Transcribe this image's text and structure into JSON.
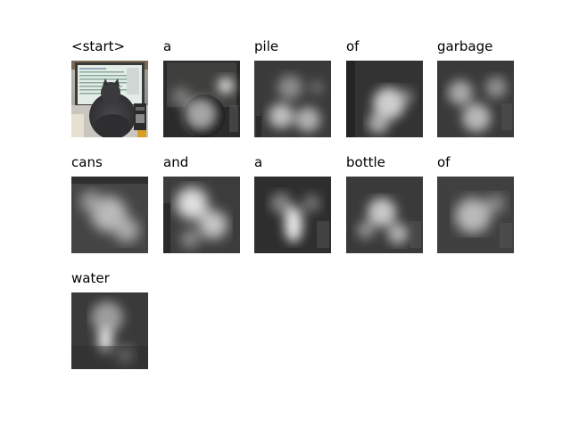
{
  "panels": [
    {
      "word": "<start>",
      "kind": "original"
    },
    {
      "word": "a",
      "kind": "attention"
    },
    {
      "word": "pile",
      "kind": "attention"
    },
    {
      "word": "of",
      "kind": "attention"
    },
    {
      "word": "garbage",
      "kind": "attention"
    },
    {
      "word": "cans",
      "kind": "attention"
    },
    {
      "word": "and",
      "kind": "attention"
    },
    {
      "word": "a",
      "kind": "attention"
    },
    {
      "word": "bottle",
      "kind": "attention"
    },
    {
      "word": "of",
      "kind": "attention"
    },
    {
      "word": "water",
      "kind": "attention"
    }
  ],
  "colors": {
    "background": "#ffffff",
    "caption": "#000000",
    "attention_overlay": "#ffffff",
    "dark_overlay": "#000000"
  }
}
